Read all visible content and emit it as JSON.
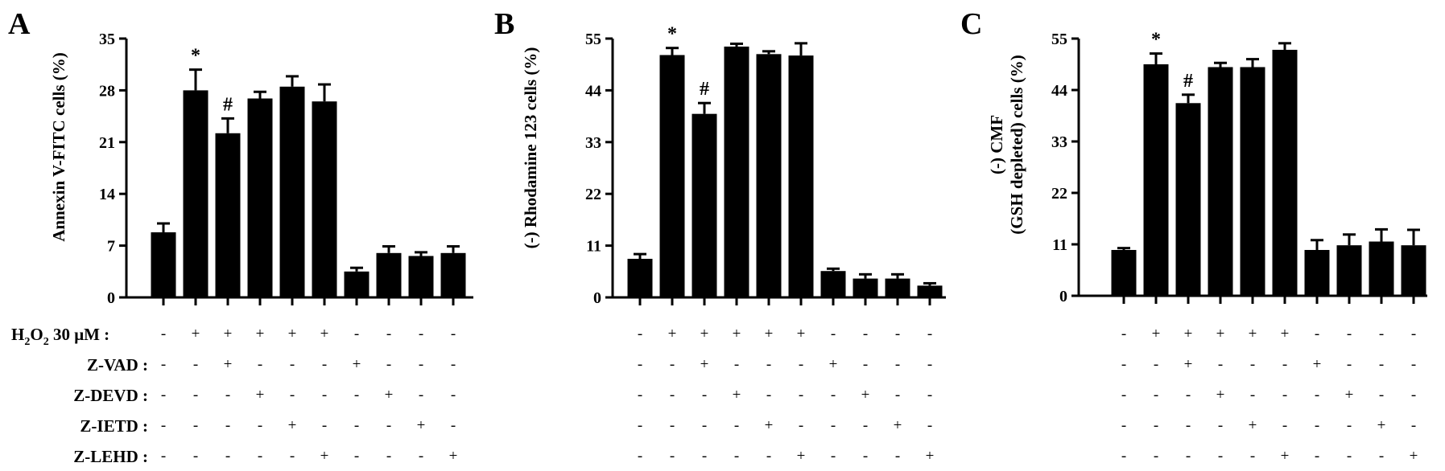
{
  "conditions": {
    "labels": [
      "H2O2 30 μM :",
      "Z-VAD :",
      "Z-DEVD :",
      "Z-IETD :",
      "Z-LEHD :"
    ],
    "h2o2_parts": [
      "H",
      "2",
      "O",
      "2",
      " 30 μM :"
    ],
    "signs": [
      [
        "-",
        "+",
        "+",
        "+",
        "+",
        "+",
        "-",
        "-",
        "-",
        "-"
      ],
      [
        "-",
        "-",
        "+",
        "-",
        "-",
        "-",
        "+",
        "-",
        "-",
        "-"
      ],
      [
        "-",
        "-",
        "-",
        "+",
        "-",
        "-",
        "-",
        "+",
        "-",
        "-"
      ],
      [
        "-",
        "-",
        "-",
        "-",
        "+",
        "-",
        "-",
        "-",
        "+",
        "-"
      ],
      [
        "-",
        "-",
        "-",
        "-",
        "-",
        "+",
        "-",
        "-",
        "-",
        "+"
      ]
    ]
  },
  "chart_data": [
    {
      "panel": "A",
      "type": "bar",
      "ylabel": "Annexin V-FITC cells (%)",
      "ylim": [
        0,
        35
      ],
      "yticks": [
        "0",
        "7",
        "14",
        "21",
        "28",
        "35"
      ],
      "values": [
        8.8,
        28.0,
        22.2,
        26.9,
        28.5,
        26.5,
        3.5,
        6.0,
        5.6,
        6.0
      ],
      "errors": [
        1.2,
        2.8,
        2.0,
        0.9,
        1.4,
        2.3,
        0.5,
        0.9,
        0.5,
        0.9
      ],
      "annotations": [
        {
          "index": 1,
          "text": "*"
        },
        {
          "index": 2,
          "text": "#"
        }
      ]
    },
    {
      "panel": "B",
      "type": "bar",
      "ylabel": "(-) Rhodamine 123 cells (%)",
      "ylim": [
        0,
        55
      ],
      "yticks": [
        "0",
        "11",
        "22",
        "33",
        "44",
        "55"
      ],
      "values": [
        8.2,
        51.5,
        39.0,
        53.3,
        51.7,
        51.4,
        5.6,
        4.0,
        4.0,
        2.5
      ],
      "errors": [
        1.0,
        1.5,
        2.3,
        0.6,
        0.6,
        2.6,
        0.5,
        0.9,
        0.9,
        0.5
      ],
      "annotations": [
        {
          "index": 1,
          "text": "*"
        },
        {
          "index": 2,
          "text": "#"
        }
      ]
    },
    {
      "panel": "C",
      "type": "bar",
      "ylabel_lines": [
        "(-) CMF",
        "(GSH depleted) cells  (%)"
      ],
      "ylim": [
        0,
        55
      ],
      "yticks": [
        "0",
        "11",
        "22",
        "33",
        "44",
        "55"
      ],
      "values": [
        9.8,
        49.5,
        41.2,
        48.9,
        48.9,
        52.6,
        9.8,
        10.8,
        11.6,
        10.8
      ],
      "errors": [
        0.4,
        2.3,
        1.8,
        0.9,
        1.7,
        1.4,
        2.1,
        2.3,
        2.6,
        3.3
      ],
      "annotations": [
        {
          "index": 1,
          "text": "*"
        },
        {
          "index": 2,
          "text": "#"
        }
      ]
    }
  ]
}
